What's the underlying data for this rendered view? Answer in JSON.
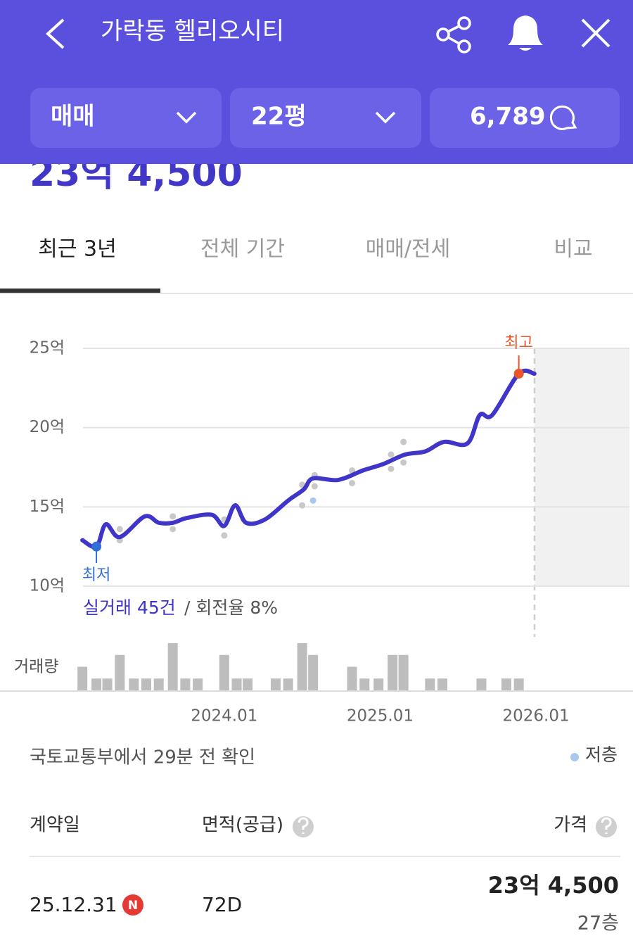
{
  "header": {
    "title": "가락동 헬리오시티"
  },
  "filters": {
    "deal_type": "매매",
    "size": "22평",
    "comments": "6,789"
  },
  "price": "23억 4,500",
  "tabs": [
    "최근 3년",
    "전체 기간",
    "매매/전세",
    "비교"
  ],
  "chart": {
    "type": "line",
    "xlim": [
      2023.06,
      2026.6
    ],
    "xticks": [
      {
        "value": 2024.0,
        "label": "2024.01"
      },
      {
        "value": 2025.0,
        "label": "2025.01"
      },
      {
        "value": 2026.0,
        "label": "2026.01"
      }
    ],
    "ylim": [
      10,
      25
    ],
    "yticks": [
      {
        "value": 10,
        "label": "10억"
      },
      {
        "value": 15,
        "label": "15억"
      },
      {
        "value": 20,
        "label": "20억"
      },
      {
        "value": 25,
        "label": "25억"
      }
    ],
    "grid": true,
    "line": {
      "color": "#3f35c8",
      "x": [
        2023.09,
        2023.18,
        2023.24,
        2023.33,
        2023.49,
        2023.58,
        2023.67,
        2023.76,
        2023.92,
        2024.0,
        2024.07,
        2024.14,
        2024.26,
        2024.41,
        2024.51,
        2024.57,
        2024.73,
        2024.89,
        2025.02,
        2025.16,
        2025.29,
        2025.41,
        2025.56,
        2025.64,
        2025.72,
        2025.89,
        2025.99
      ],
      "values": [
        12.9,
        12.5,
        13.9,
        13.1,
        14.4,
        14.0,
        14.0,
        14.3,
        14.5,
        13.8,
        15.1,
        14.0,
        14.2,
        15.4,
        16.1,
        16.8,
        16.7,
        17.3,
        17.7,
        18.3,
        18.5,
        19.1,
        19.0,
        20.8,
        20.8,
        23.4,
        23.4
      ]
    },
    "trades": {
      "color": "#c8c8c8",
      "x": [
        2023.33,
        2023.33,
        2023.67,
        2023.67,
        2024.0,
        2024.0,
        2024.5,
        2024.5,
        2024.58,
        2024.58,
        2024.82,
        2024.82,
        2025.07,
        2025.07,
        2025.15,
        2025.15
      ],
      "values": [
        13.6,
        12.9,
        14.4,
        13.6,
        14.2,
        13.2,
        16.4,
        15.1,
        17.0,
        16.3,
        17.3,
        16.5,
        18.3,
        17.4,
        19.1,
        17.8
      ]
    },
    "low_floor_trades": {
      "color": "#a9c8f0",
      "x": [
        2024.57
      ],
      "values": [
        15.4
      ]
    },
    "max": {
      "label": "최고",
      "color": "#e8562a",
      "x": 2025.89,
      "value": 23.4
    },
    "min": {
      "label": "최저",
      "color": "#2f6fd6",
      "x": 2023.18,
      "value": 12.5
    },
    "summary": {
      "count": "실거래 45건",
      "rate": "/ 회전율 8%"
    },
    "volume": {
      "label": "거래량",
      "color": "#bdbdbd",
      "x": [
        2023.09,
        2023.18,
        2023.25,
        2023.33,
        2023.42,
        2023.5,
        2023.58,
        2023.67,
        2023.75,
        2023.83,
        2024.0,
        2024.08,
        2024.15,
        2024.33,
        2024.41,
        2024.5,
        2024.57,
        2024.82,
        2024.9,
        2024.99,
        2025.08,
        2025.15,
        2025.32,
        2025.4,
        2025.65,
        2025.81,
        2025.89
      ],
      "values": [
        2,
        1,
        1,
        3,
        1,
        1,
        1,
        4,
        1,
        1,
        3,
        1,
        1,
        1,
        1,
        4,
        3,
        2,
        1,
        1,
        3,
        3,
        1,
        1,
        1,
        1,
        1
      ]
    }
  },
  "source": "국토교통부에서 29분 전 확인",
  "legend": {
    "label": "저층",
    "color": "#a9c8f0"
  },
  "table": {
    "columns": [
      "계약일",
      "면적(공급)",
      "가격"
    ],
    "rows": [
      {
        "date": "25.12.31",
        "badge": "N",
        "area": "72D",
        "price": "23억 4,500",
        "floor": "27층"
      }
    ]
  }
}
